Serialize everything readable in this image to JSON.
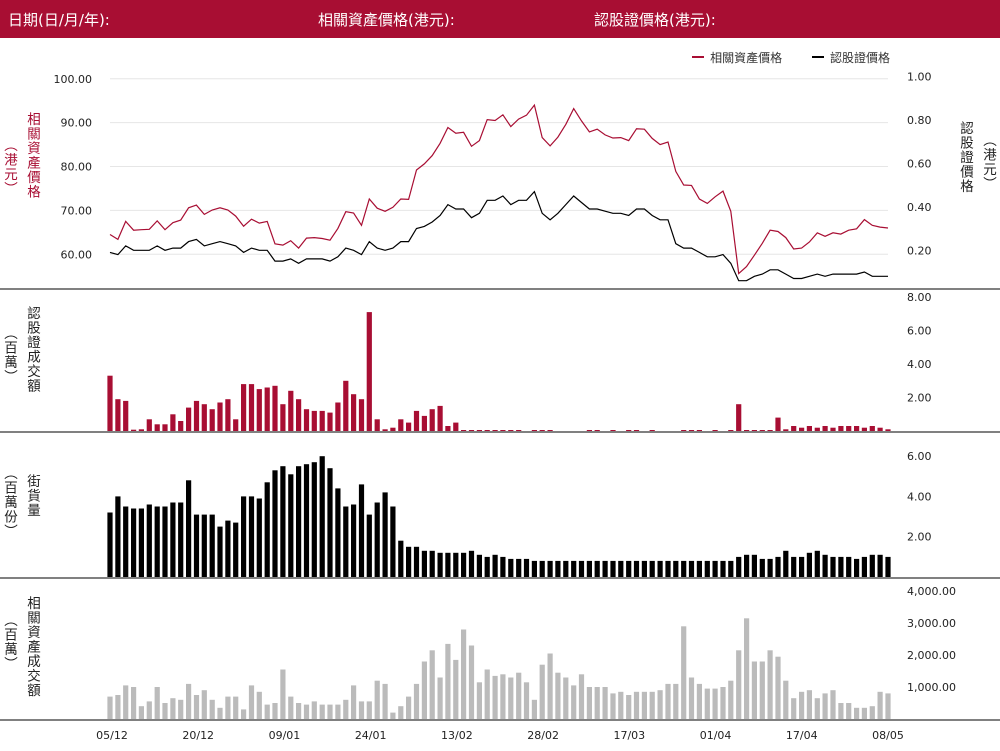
{
  "header": {
    "date_label": "日期(日/月/年):",
    "underlying_label": "相關資產價格(港元):",
    "warrant_label": "認股證價格(港元):"
  },
  "legend": [
    {
      "name": "相關資產價格",
      "color": "#a80e33"
    },
    {
      "name": "認股證價格",
      "color": "#000000"
    }
  ],
  "axis_labels": {
    "price_left_a": "相關資產價格",
    "price_left_b": "（港元）",
    "price_right_a": "認股證價格",
    "price_right_b": "（港元）",
    "turnover_a": "認股證成交額",
    "turnover_b": "（百萬）",
    "outstanding_a": "街貨量",
    "outstanding_b": "（百萬份）",
    "underlying_turnover_a": "相關資產成交額",
    "underlying_turnover_b": "（百萬）"
  },
  "colors": {
    "accent": "#a80e33",
    "warrant": "#000000",
    "underlying_bar": "#bbbbbb"
  },
  "chart_data": [
    {
      "type": "line",
      "x_ticks": [
        "05/12",
        "20/12",
        "09/01",
        "24/01",
        "13/02",
        "28/02",
        "17/03",
        "01/04",
        "17/04",
        "08/05"
      ],
      "left_ticks": [
        "100.00",
        "90.00",
        "80.00",
        "70.00",
        "60.00"
      ],
      "right_ticks": [
        "1.00",
        "0.80",
        "0.60",
        "0.40",
        "0.20"
      ],
      "ylim_left": [
        53,
        102
      ],
      "ylim_right": [
        0.04,
        1.03
      ],
      "series": [
        {
          "name": "相關資產價格",
          "axis": "left",
          "values": [
            64.5,
            63.4,
            67.5,
            65.5,
            65.6,
            65.7,
            67.6,
            65.6,
            67.2,
            67.8,
            70.6,
            71.2,
            69.1,
            70.1,
            70.6,
            70.1,
            68.7,
            66.4,
            68.0,
            67.1,
            67.5,
            62.4,
            62.1,
            63.1,
            61.4,
            63.7,
            63.8,
            63.6,
            63.2,
            65.9,
            69.7,
            69.4,
            66.6,
            72.6,
            70.5,
            69.8,
            70.7,
            72.6,
            72.5,
            79.2,
            80.6,
            82.5,
            85.3,
            88.9,
            87.6,
            87.8,
            84.6,
            85.9,
            90.7,
            90.5,
            91.8,
            89.1,
            90.8,
            91.7,
            94.0,
            86.6,
            84.7,
            86.7,
            89.6,
            93.2,
            90.4,
            87.9,
            88.5,
            87.2,
            86.5,
            86.6,
            85.9,
            88.6,
            88.5,
            86.4,
            85.0,
            85.6,
            78.9,
            75.8,
            75.7,
            72.6,
            71.6,
            73.1,
            74.4,
            69.8,
            55.6,
            57.2,
            59.8,
            62.5,
            65.5,
            65.2,
            63.8,
            61.2,
            61.4,
            62.8,
            64.9,
            64.1,
            64.9,
            64.6,
            65.5,
            65.8,
            67.9,
            66.6,
            66.2,
            66.0
          ]
        },
        {
          "name": "認股證價格",
          "axis": "right",
          "values": [
            0.19,
            0.18,
            0.22,
            0.2,
            0.2,
            0.2,
            0.22,
            0.2,
            0.21,
            0.21,
            0.24,
            0.25,
            0.22,
            0.23,
            0.24,
            0.23,
            0.22,
            0.19,
            0.21,
            0.2,
            0.2,
            0.15,
            0.15,
            0.16,
            0.14,
            0.16,
            0.16,
            0.16,
            0.15,
            0.17,
            0.21,
            0.2,
            0.18,
            0.24,
            0.21,
            0.2,
            0.21,
            0.24,
            0.24,
            0.3,
            0.31,
            0.33,
            0.36,
            0.41,
            0.39,
            0.39,
            0.35,
            0.37,
            0.43,
            0.43,
            0.45,
            0.41,
            0.43,
            0.43,
            0.47,
            0.37,
            0.34,
            0.37,
            0.41,
            0.45,
            0.42,
            0.39,
            0.39,
            0.38,
            0.37,
            0.37,
            0.36,
            0.39,
            0.39,
            0.36,
            0.34,
            0.34,
            0.23,
            0.21,
            0.21,
            0.19,
            0.17,
            0.17,
            0.18,
            0.14,
            0.06,
            0.06,
            0.08,
            0.09,
            0.11,
            0.11,
            0.09,
            0.07,
            0.07,
            0.08,
            0.09,
            0.08,
            0.09,
            0.09,
            0.09,
            0.09,
            0.1,
            0.08,
            0.08,
            0.08
          ]
        }
      ]
    },
    {
      "type": "bar",
      "ylabel": "認股證成交額（百萬）",
      "ticks": [
        "8.00",
        "6.00",
        "4.00",
        "2.00"
      ],
      "ylim": [
        0,
        8.3
      ],
      "values": [
        3.3,
        1.9,
        1.8,
        0.08,
        0.1,
        0.7,
        0.4,
        0.4,
        1.0,
        0.6,
        1.4,
        1.8,
        1.6,
        1.3,
        1.7,
        1.9,
        0.7,
        2.8,
        2.8,
        2.5,
        2.6,
        2.7,
        1.6,
        2.4,
        1.9,
        1.3,
        1.2,
        1.2,
        1.1,
        1.7,
        3.0,
        2.2,
        1.9,
        7.1,
        0.7,
        0.1,
        0.2,
        0.7,
        0.5,
        1.2,
        0.9,
        1.3,
        1.5,
        0.3,
        0.5,
        0.04,
        0.04,
        0.04,
        0.04,
        0.04,
        0.04,
        0.04,
        0.04,
        0,
        0.04,
        0.04,
        0.04,
        0,
        0,
        0,
        0,
        0.04,
        0.04,
        0,
        0.04,
        0,
        0.04,
        0.04,
        0,
        0.04,
        0,
        0,
        0,
        0.04,
        0.04,
        0.04,
        0,
        0.04,
        0,
        0.04,
        1.6,
        0.04,
        0.04,
        0.04,
        0.04,
        0.8,
        0.1,
        0.3,
        0.2,
        0.3,
        0.2,
        0.3,
        0.2,
        0.3,
        0.3,
        0.3,
        0.2,
        0.3,
        0.2,
        0.1
      ]
    },
    {
      "type": "bar",
      "ylabel": "街貨量（百萬份）",
      "ticks": [
        "6.00",
        "4.00",
        "2.00"
      ],
      "ylim": [
        0,
        7.1
      ],
      "values": [
        3.2,
        4.0,
        3.5,
        3.4,
        3.4,
        3.6,
        3.5,
        3.5,
        3.7,
        3.7,
        4.8,
        3.1,
        3.1,
        3.1,
        2.5,
        2.8,
        2.7,
        4.0,
        4.0,
        3.9,
        4.7,
        5.3,
        5.5,
        5.1,
        5.5,
        5.6,
        5.7,
        6.0,
        5.4,
        4.4,
        3.5,
        3.6,
        4.6,
        3.1,
        3.7,
        4.2,
        3.5,
        1.8,
        1.5,
        1.5,
        1.3,
        1.3,
        1.2,
        1.2,
        1.2,
        1.2,
        1.3,
        1.1,
        1.0,
        1.1,
        1.0,
        0.9,
        0.9,
        0.9,
        0.8,
        0.8,
        0.8,
        0.8,
        0.8,
        0.8,
        0.8,
        0.8,
        0.8,
        0.8,
        0.8,
        0.8,
        0.8,
        0.8,
        0.8,
        0.8,
        0.8,
        0.8,
        0.8,
        0.8,
        0.8,
        0.8,
        0.8,
        0.8,
        0.8,
        0.8,
        1.0,
        1.1,
        1.1,
        0.9,
        0.9,
        1.0,
        1.3,
        1.0,
        1.0,
        1.2,
        1.3,
        1.1,
        1.0,
        1.0,
        1.0,
        0.9,
        1.0,
        1.1,
        1.1,
        1.0
      ]
    },
    {
      "type": "bar",
      "ylabel": "相關資產成交額（百萬）",
      "ticks": [
        "4,000.00",
        "3,000.00",
        "2,000.00",
        "1,000.00"
      ],
      "ylim": [
        0,
        4350
      ],
      "values": [
        700,
        750,
        1050,
        1000,
        400,
        550,
        1000,
        500,
        650,
        600,
        1100,
        750,
        900,
        600,
        350,
        700,
        700,
        300,
        1050,
        850,
        450,
        500,
        1550,
        700,
        500,
        450,
        550,
        450,
        450,
        450,
        600,
        1050,
        550,
        550,
        1200,
        1100,
        200,
        400,
        700,
        1100,
        1800,
        2150,
        1300,
        2350,
        1850,
        2800,
        2300,
        1150,
        1550,
        1350,
        1400,
        1300,
        1450,
        1150,
        600,
        1700,
        2050,
        1450,
        1300,
        1050,
        1400,
        1000,
        1000,
        1000,
        800,
        850,
        750,
        850,
        850,
        850,
        900,
        1100,
        1100,
        2900,
        1300,
        1100,
        950,
        950,
        1000,
        1200,
        2150,
        3150,
        1800,
        1800,
        2150,
        1950,
        1200,
        650,
        850,
        900,
        650,
        800,
        900,
        500,
        500,
        350,
        350,
        400,
        850,
        800
      ]
    }
  ]
}
